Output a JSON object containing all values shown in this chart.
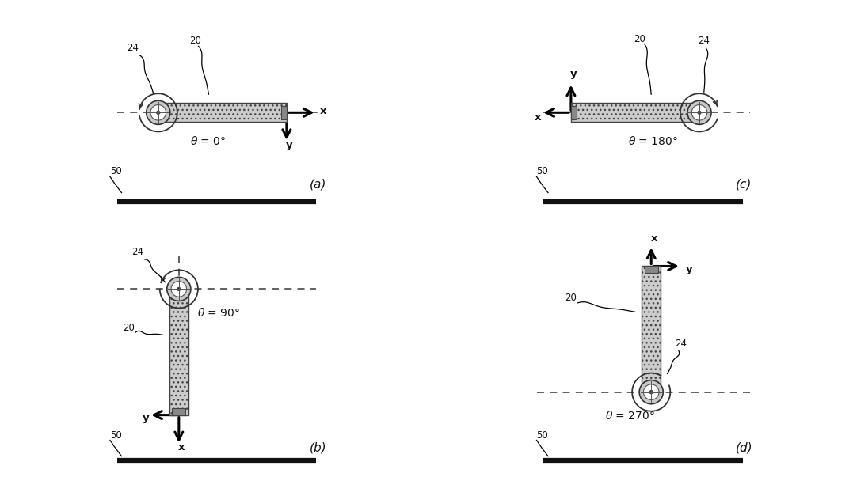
{
  "background_color": "#ffffff",
  "rod_facecolor": "#cccccc",
  "rod_edgecolor": "#444444",
  "wheel_facecolor": "#bbbbbb",
  "wheel_edgecolor": "#333333",
  "dashed_color": "#555555",
  "ground_color": "#111111",
  "arrow_color": "#000000",
  "text_color": "#111111",
  "font_size": 8.5,
  "label_font_size": 11,
  "hatch": "...",
  "panel_labels": [
    "(a)",
    "(b)",
    "(c)",
    "(d)"
  ],
  "theta_labels": [
    "θ = 0°",
    "θ = 90°",
    "θ = 180°",
    "θ = 270°"
  ]
}
